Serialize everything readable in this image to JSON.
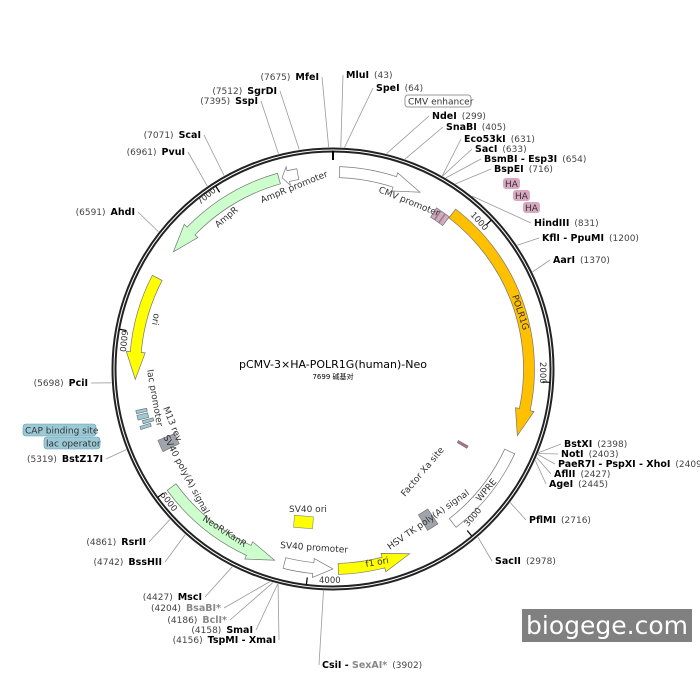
{
  "title": "pCMV-3×HA-POLR1G(human)-Neo",
  "subtitle": "7699 碱基对",
  "total_bp": 7699,
  "watermark": "biogege.com",
  "ticks": [
    "1000",
    "2000",
    "3000",
    "4000",
    "5000",
    "6000",
    "7000"
  ],
  "sites": [
    {
      "name": "MluI",
      "pos": "(43)",
      "bp": 43
    },
    {
      "name": "SpeI",
      "pos": "(64)",
      "bp": 64
    },
    {
      "name": "NdeI",
      "pos": "(299)",
      "bp": 299
    },
    {
      "name": "SnaBI",
      "pos": "(405)",
      "bp": 405
    },
    {
      "name": "Eco53kI",
      "pos": "(631)",
      "bp": 631
    },
    {
      "name": "SacI",
      "pos": "(633)",
      "bp": 633
    },
    {
      "name": "BsmBI - Esp3I",
      "pos": "(654)",
      "bp": 654
    },
    {
      "name": "BspEI",
      "pos": "(716)",
      "bp": 716
    },
    {
      "name": "HindIII",
      "pos": "(831)",
      "bp": 831
    },
    {
      "name": "KflI - PpuMI",
      "pos": "(1200)",
      "bp": 1200
    },
    {
      "name": "AarI",
      "pos": "(1370)",
      "bp": 1370
    },
    {
      "name": "BstXI",
      "pos": "(2398)",
      "bp": 2398
    },
    {
      "name": "NotI",
      "pos": "(2403)",
      "bp": 2403
    },
    {
      "name": "PaeR7I - PspXI - XhoI",
      "pos": "(2409)",
      "bp": 2409
    },
    {
      "name": "AflII",
      "pos": "(2427)",
      "bp": 2427
    },
    {
      "name": "AgeI",
      "pos": "(2445)",
      "bp": 2445
    },
    {
      "name": "PflMI",
      "pos": "(2716)",
      "bp": 2716
    },
    {
      "name": "SacII",
      "pos": "(2978)",
      "bp": 2978
    },
    {
      "name": "CsiI - ",
      "name2": "SexAI*",
      "pos": "(3902)",
      "bp": 3902
    },
    {
      "name": "TspMI - XmaI",
      "pos": "(4156)",
      "bp": 4156
    },
    {
      "name": "SmaI",
      "pos": "(4158)",
      "bp": 4158
    },
    {
      "name": "BclI*",
      "pos": "(4186)",
      "bp": 4186
    },
    {
      "name": "BsaBI*",
      "pos": "(4204)",
      "bp": 4204
    },
    {
      "name": "MscI",
      "pos": "(4427)",
      "bp": 4427
    },
    {
      "name": "BssHII",
      "pos": "(4742)",
      "bp": 4742
    },
    {
      "name": "RsrII",
      "pos": "(4861)",
      "bp": 4861
    },
    {
      "name": "BstZ17I",
      "pos": "(5319)",
      "bp": 5319
    },
    {
      "name": "PciI",
      "pos": "(5698)",
      "bp": 5698
    },
    {
      "name": "AhdI",
      "pos": "(6591)",
      "bp": 6591
    },
    {
      "name": "PvuI",
      "pos": "(6961)",
      "bp": 6961
    },
    {
      "name": "ScaI",
      "pos": "(7071)",
      "bp": 7071
    },
    {
      "name": "SspI",
      "pos": "(7395)",
      "bp": 7395
    },
    {
      "name": "SgrDI",
      "pos": "(7512)",
      "bp": 7512
    },
    {
      "name": "MfeI",
      "pos": "(7675)",
      "bp": 7675
    }
  ],
  "features": [
    {
      "label": "CMV enhancer",
      "start": 60,
      "end": 300,
      "color": "#ffffff",
      "type": "boxed-label"
    },
    {
      "label": "CMV promoter",
      "start": 40,
      "end": 560,
      "dir": "cw",
      "color": "#ffffff"
    },
    {
      "label": "HA",
      "start": 700,
      "end": 730,
      "color": "#d8a8c0"
    },
    {
      "label": "HA",
      "start": 735,
      "end": 765,
      "color": "#d8a8c0"
    },
    {
      "label": "HA",
      "start": 770,
      "end": 800,
      "color": "#d8a8c0"
    },
    {
      "label": "POLR1G",
      "start": 802,
      "end": 2350,
      "dir": "cw",
      "color": "#ffc000"
    },
    {
      "label": "WPRE",
      "start": 2460,
      "end": 3040,
      "color": "#ffffff"
    },
    {
      "label": "Factor Xa site",
      "start": 2560,
      "end": 2580,
      "color": "#b07090"
    },
    {
      "label": "HSV TK poly(A) signal",
      "start": 3120,
      "end": 3200,
      "color": "#a0a4ac"
    },
    {
      "label": "f1 ori",
      "start": 3368,
      "end": 3817,
      "dir": "ccw",
      "color": "#ffff00"
    },
    {
      "label": "SV40 promoter",
      "start": 3850,
      "end": 4150,
      "dir": "ccw",
      "color": "#ffffff"
    },
    {
      "label": "SV40 ori",
      "color": "#ffff00"
    },
    {
      "label": "NeoR/KanR",
      "start": 4213,
      "end": 5000,
      "dir": "ccw",
      "color": "#ccffcc"
    },
    {
      "label": "SV40 poly(A) signal",
      "start": 5220,
      "end": 5300,
      "color": "#a0a4ac"
    },
    {
      "label": "M13 rev",
      "start": 5400,
      "end": 5420,
      "color": "#9cc9d6"
    },
    {
      "label": "lac operator",
      "start": 5430,
      "end": 5450,
      "color": "#9cc9d6"
    },
    {
      "label": "lac promoter",
      "start": 5460,
      "end": 5490,
      "color": "#9cc9d6"
    },
    {
      "label": "CAP binding site",
      "start": 5500,
      "end": 5520,
      "color": "#9cc9d6"
    },
    {
      "label": "ori",
      "start": 5710,
      "end": 6360,
      "dir": "ccw",
      "color": "#ffff00"
    },
    {
      "label": "AmpR",
      "start": 6550,
      "end": 7360,
      "dir": "ccw",
      "color": "#ccffcc"
    },
    {
      "label": "AmpR promoter",
      "start": 7380,
      "end": 7480,
      "dir": "ccw",
      "color": "#ffffff"
    }
  ]
}
